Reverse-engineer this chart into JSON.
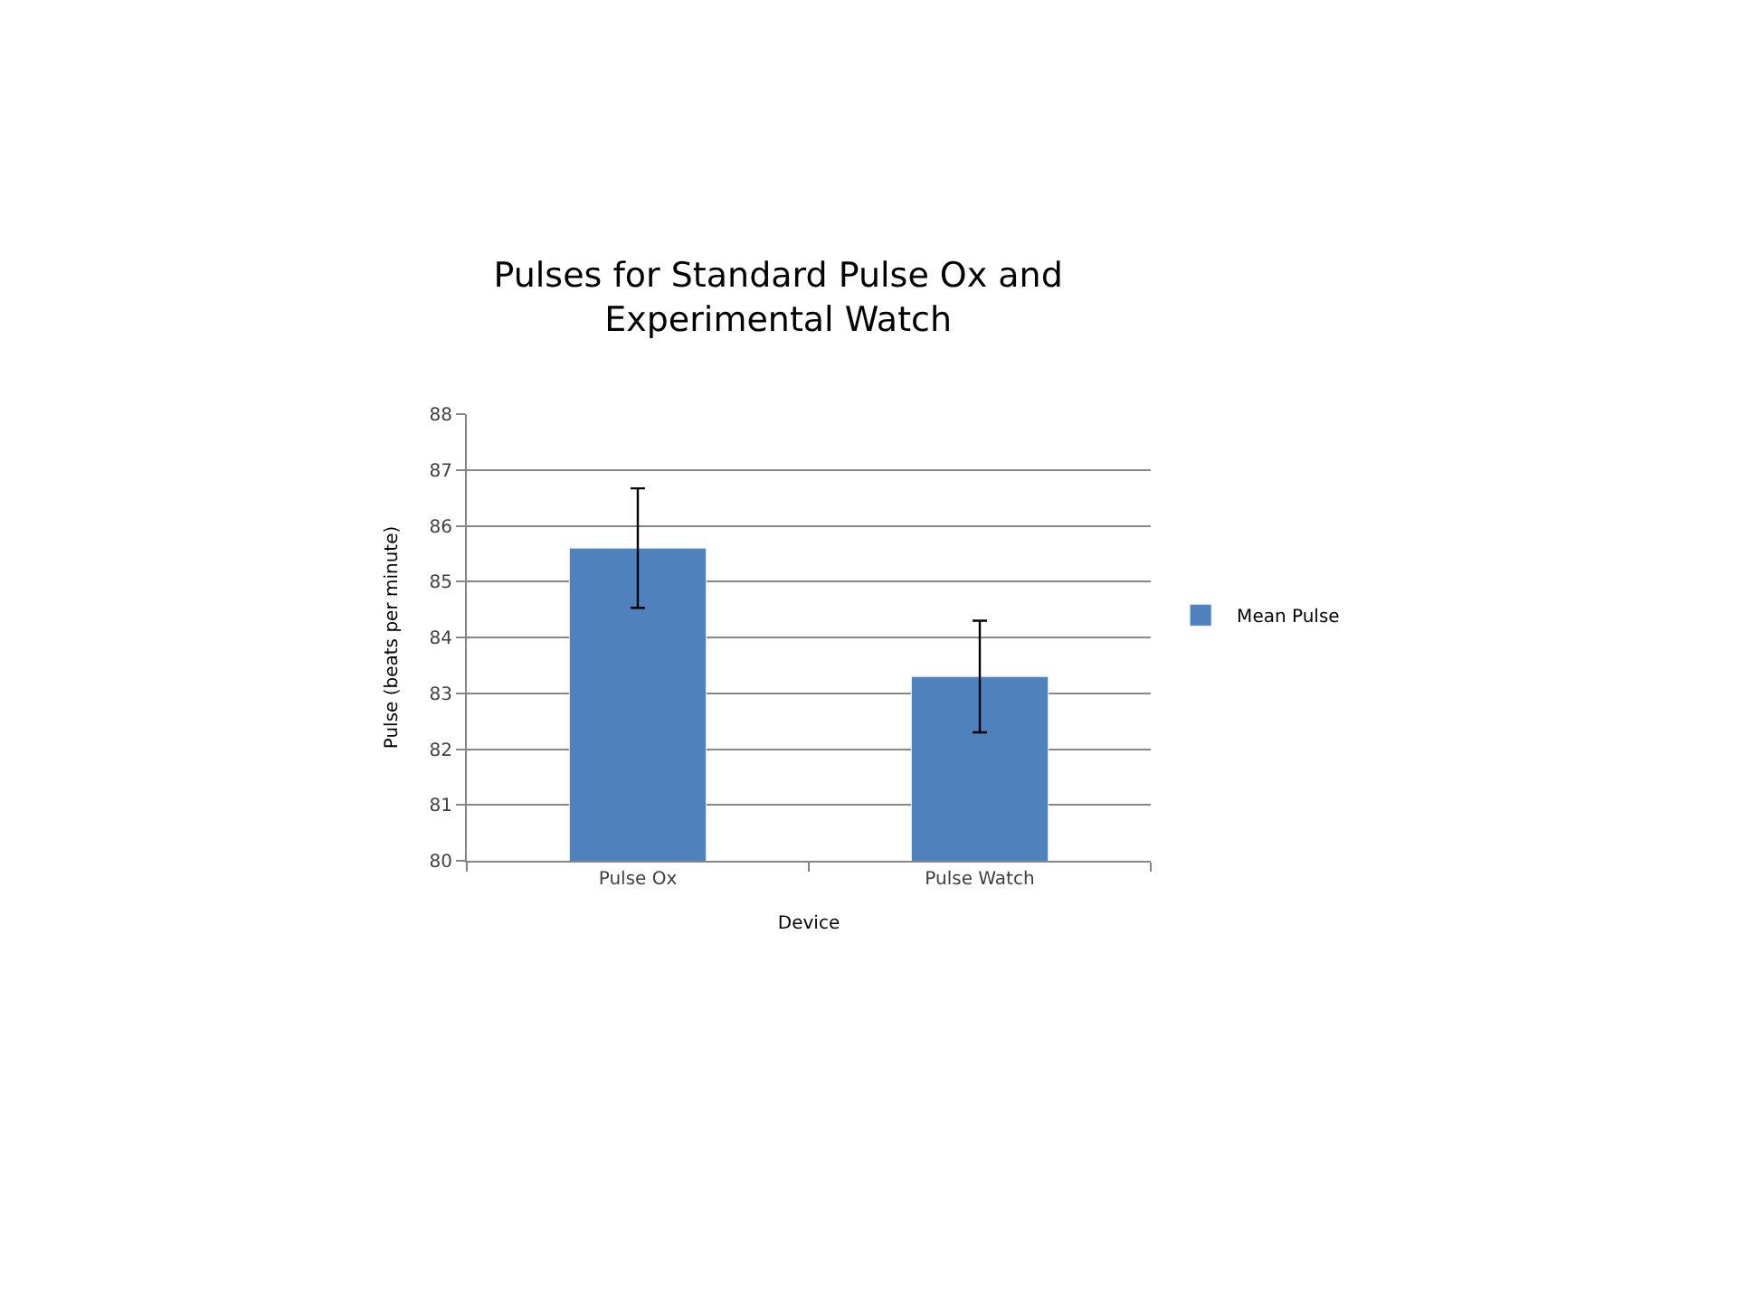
{
  "chart_data": {
    "type": "bar",
    "title": "Pulses for Standard Pulse Ox and Experimental Watch",
    "xlabel": "Device",
    "ylabel": "Pulse (beats per minute)",
    "categories": [
      "Pulse Ox",
      "Pulse Watch"
    ],
    "series": [
      {
        "name": "Mean Pulse",
        "color": "#4f81bd",
        "values": [
          85.6,
          83.3
        ],
        "errors": [
          1.07,
          1.0
        ]
      }
    ],
    "ylim": [
      80,
      88
    ],
    "yticks": [
      80,
      81,
      82,
      83,
      84,
      85,
      86,
      87,
      88
    ],
    "grid": "y",
    "legend": "right"
  }
}
